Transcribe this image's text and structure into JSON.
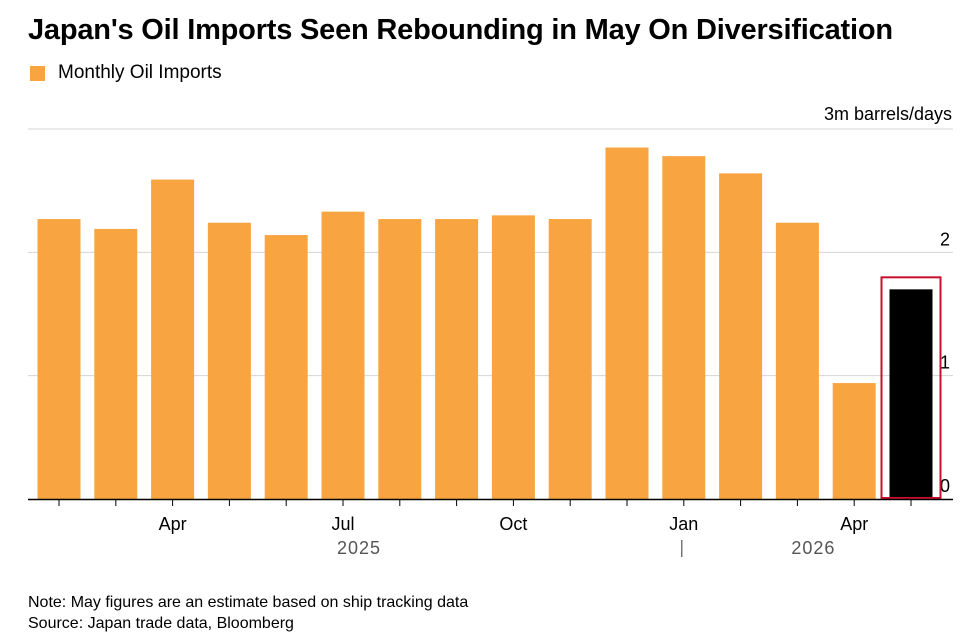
{
  "title": "Japan's Oil Imports Seen Rebounding in May On Diversification",
  "legend": {
    "label": "Monthly Oil Imports",
    "color": "#F8A541"
  },
  "unit_label": "3m barrels/days",
  "note": "Note: May figures are an estimate based on ship tracking data",
  "source": "Source: Japan trade data, Bloomberg",
  "chart_data": {
    "type": "bar",
    "title": "Japan's Oil Imports Seen Rebounding in May On Diversification",
    "categories": [
      "2025-02",
      "2025-03",
      "2025-04",
      "2025-05",
      "2025-06",
      "2025-07",
      "2025-08",
      "2025-09",
      "2025-10",
      "2025-11",
      "2025-12",
      "2026-01",
      "2026-02",
      "2026-03",
      "2026-04",
      "2026-05"
    ],
    "series": [
      {
        "name": "Monthly Oil Imports",
        "values": [
          2.27,
          2.19,
          2.59,
          2.24,
          2.14,
          2.33,
          2.27,
          2.27,
          2.3,
          2.27,
          2.85,
          2.78,
          2.64,
          2.24,
          0.94,
          1.7
        ]
      }
    ],
    "highlight": {
      "index": 15,
      "bar_color": "#000000",
      "box_color": "#C8102E"
    },
    "x_tick_labels": [
      {
        "label": "Apr",
        "index": 2
      },
      {
        "label": "Jul",
        "index": 5
      },
      {
        "label": "Oct",
        "index": 8
      },
      {
        "label": "Jan",
        "index": 11
      },
      {
        "label": "Apr",
        "index": 14
      }
    ],
    "year_labels": [
      {
        "label": "2025",
        "index": 5
      },
      {
        "label": "2026",
        "index": 13
      }
    ],
    "y_ticks": [
      "0",
      "1",
      "2"
    ],
    "ylim": [
      0,
      3
    ],
    "bar_color": "#F8A541",
    "grid": true,
    "y_axis_side": "right"
  }
}
